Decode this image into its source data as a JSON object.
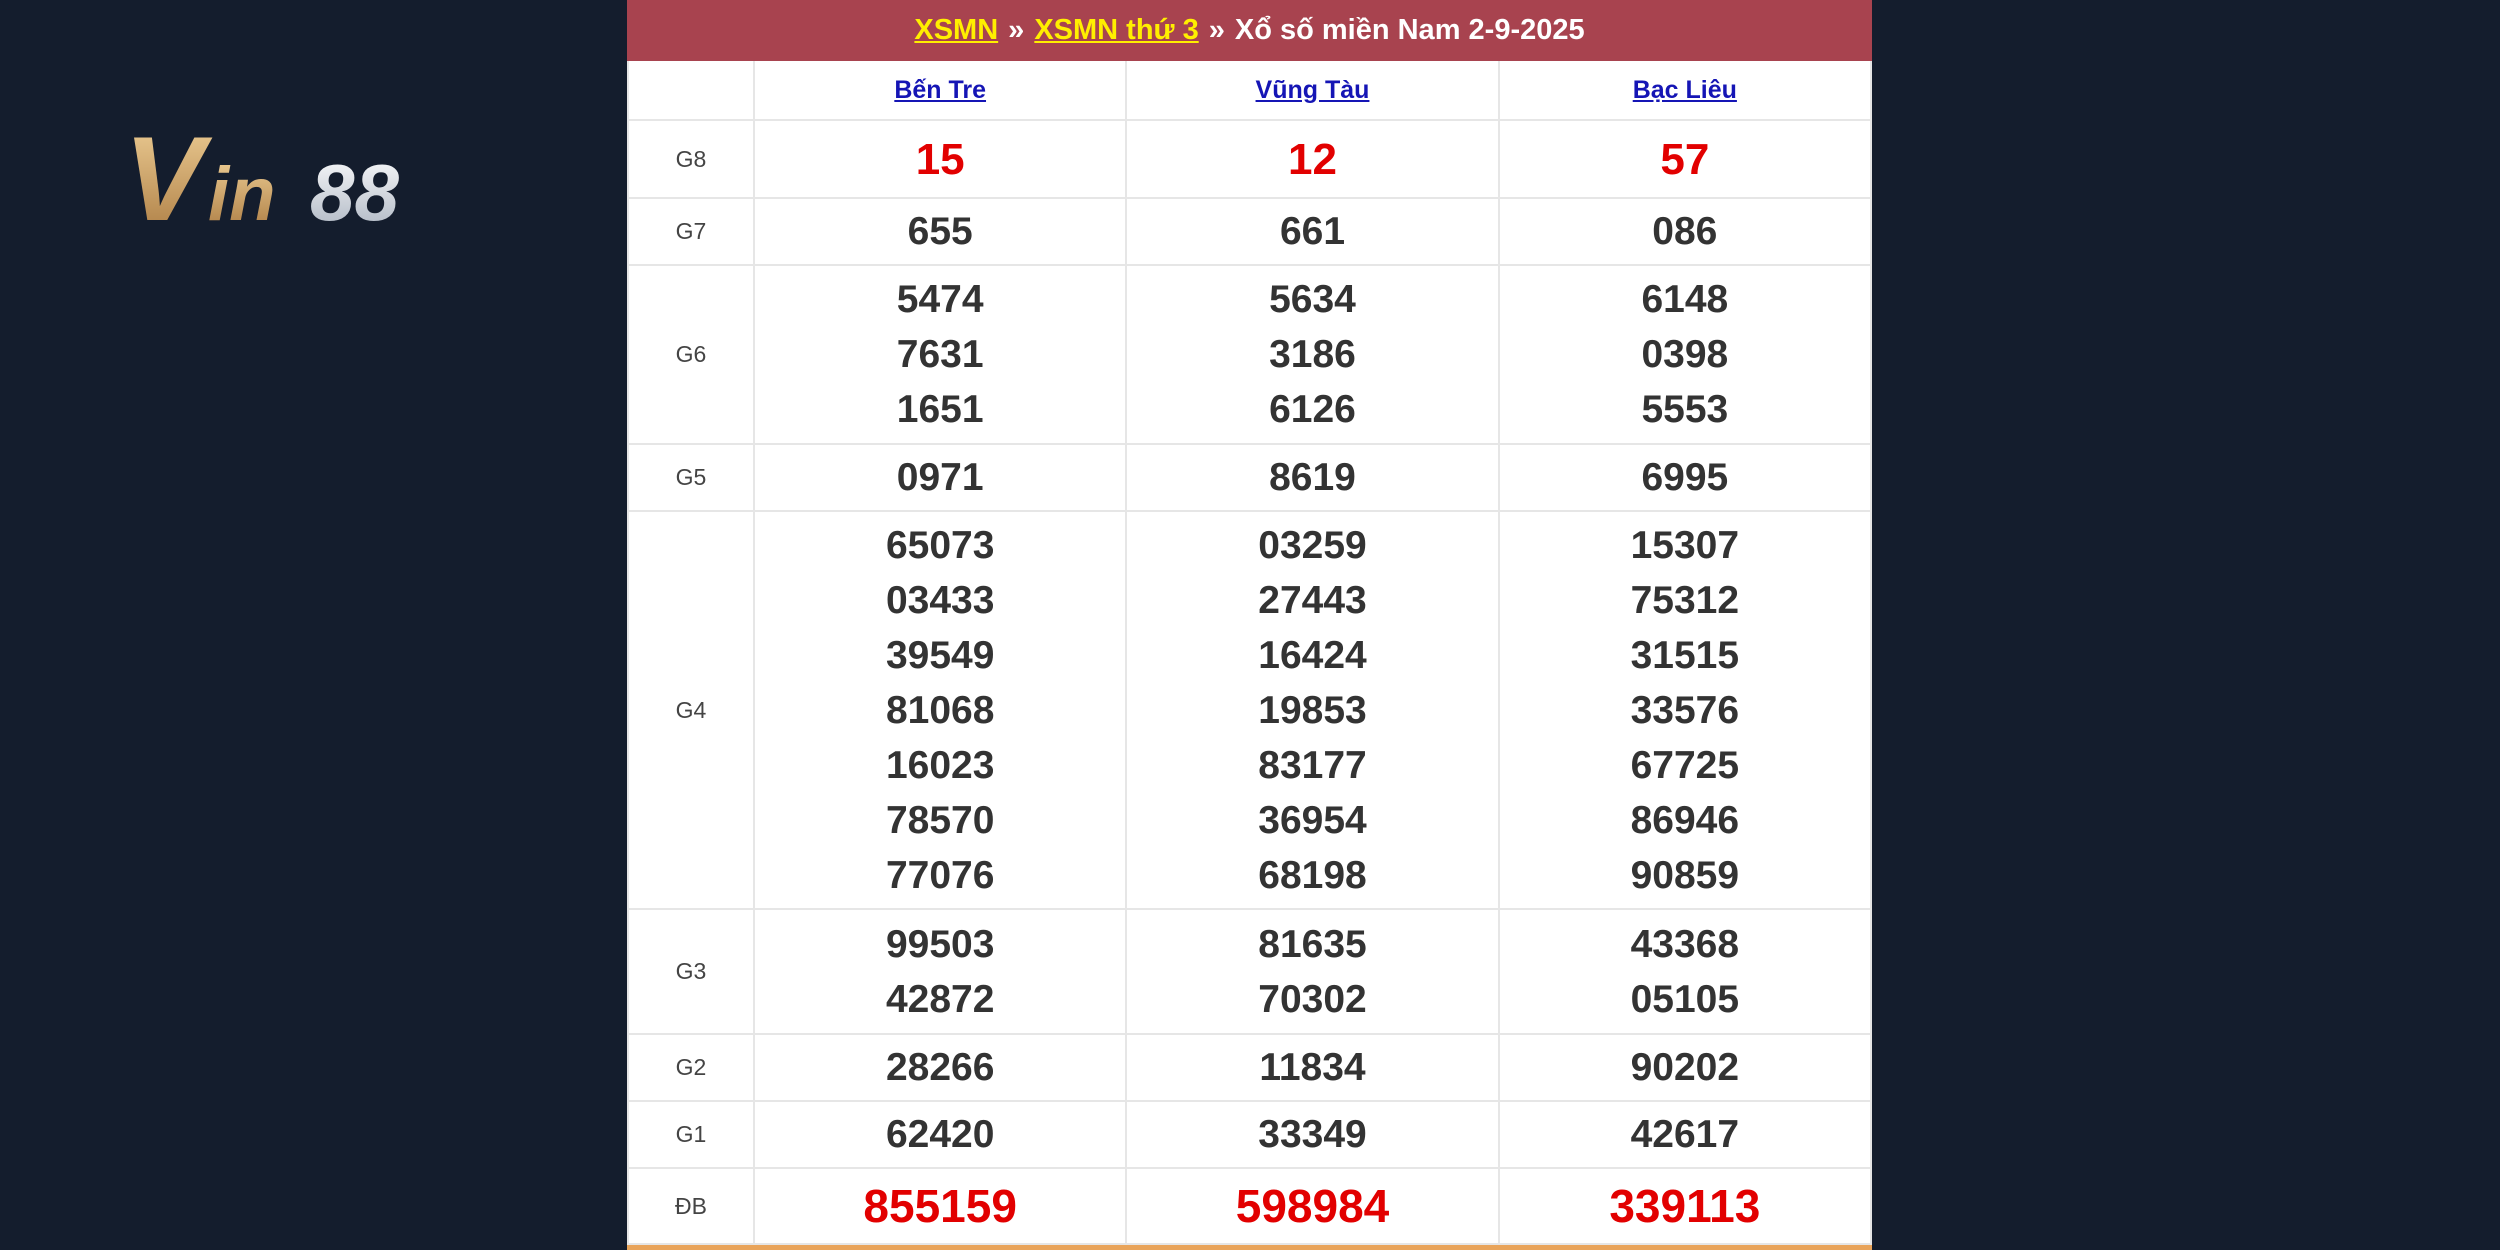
{
  "logo": {
    "text": "Vin88",
    "colors": {
      "gold": "#c79a5a",
      "silver": "#dfe5ee"
    }
  },
  "header": {
    "breadcrumb": [
      {
        "label": "XSMN",
        "link": true
      },
      {
        "label": "XSMN thứ 3",
        "link": true
      },
      {
        "label": "Xổ số miền Nam 2-9-2025",
        "link": false
      }
    ],
    "separator": "»",
    "colors": {
      "background": "#a8434f",
      "link": "#ffef00"
    }
  },
  "provinces": [
    "Bến Tre",
    "Vũng Tàu",
    "Bạc Liêu"
  ],
  "prizes": [
    {
      "label": "G8",
      "style": "red",
      "values": [
        [
          "15"
        ],
        [
          "12"
        ],
        [
          "57"
        ]
      ]
    },
    {
      "label": "G7",
      "style": "normal",
      "values": [
        [
          "655"
        ],
        [
          "661"
        ],
        [
          "086"
        ]
      ]
    },
    {
      "label": "G6",
      "style": "normal",
      "values": [
        [
          "5474",
          "7631",
          "1651"
        ],
        [
          "5634",
          "3186",
          "6126"
        ],
        [
          "6148",
          "0398",
          "5553"
        ]
      ]
    },
    {
      "label": "G5",
      "style": "normal",
      "values": [
        [
          "0971"
        ],
        [
          "8619"
        ],
        [
          "6995"
        ]
      ]
    },
    {
      "label": "G4",
      "style": "normal",
      "values": [
        [
          "65073",
          "03433",
          "39549",
          "81068",
          "16023",
          "78570",
          "77076"
        ],
        [
          "03259",
          "27443",
          "16424",
          "19853",
          "83177",
          "36954",
          "68198"
        ],
        [
          "15307",
          "75312",
          "31515",
          "33576",
          "67725",
          "86946",
          "90859"
        ]
      ]
    },
    {
      "label": "G3",
      "style": "normal",
      "values": [
        [
          "99503",
          "42872"
        ],
        [
          "81635",
          "70302"
        ],
        [
          "43368",
          "05105"
        ]
      ]
    },
    {
      "label": "G2",
      "style": "normal",
      "values": [
        [
          "28266"
        ],
        [
          "11834"
        ],
        [
          "90202"
        ]
      ]
    },
    {
      "label": "G1",
      "style": "normal",
      "values": [
        [
          "62420"
        ],
        [
          "33349"
        ],
        [
          "42617"
        ]
      ]
    },
    {
      "label": "ĐB",
      "style": "db",
      "values": [
        [
          "855159"
        ],
        [
          "598984"
        ],
        [
          "339113"
        ]
      ]
    }
  ]
}
